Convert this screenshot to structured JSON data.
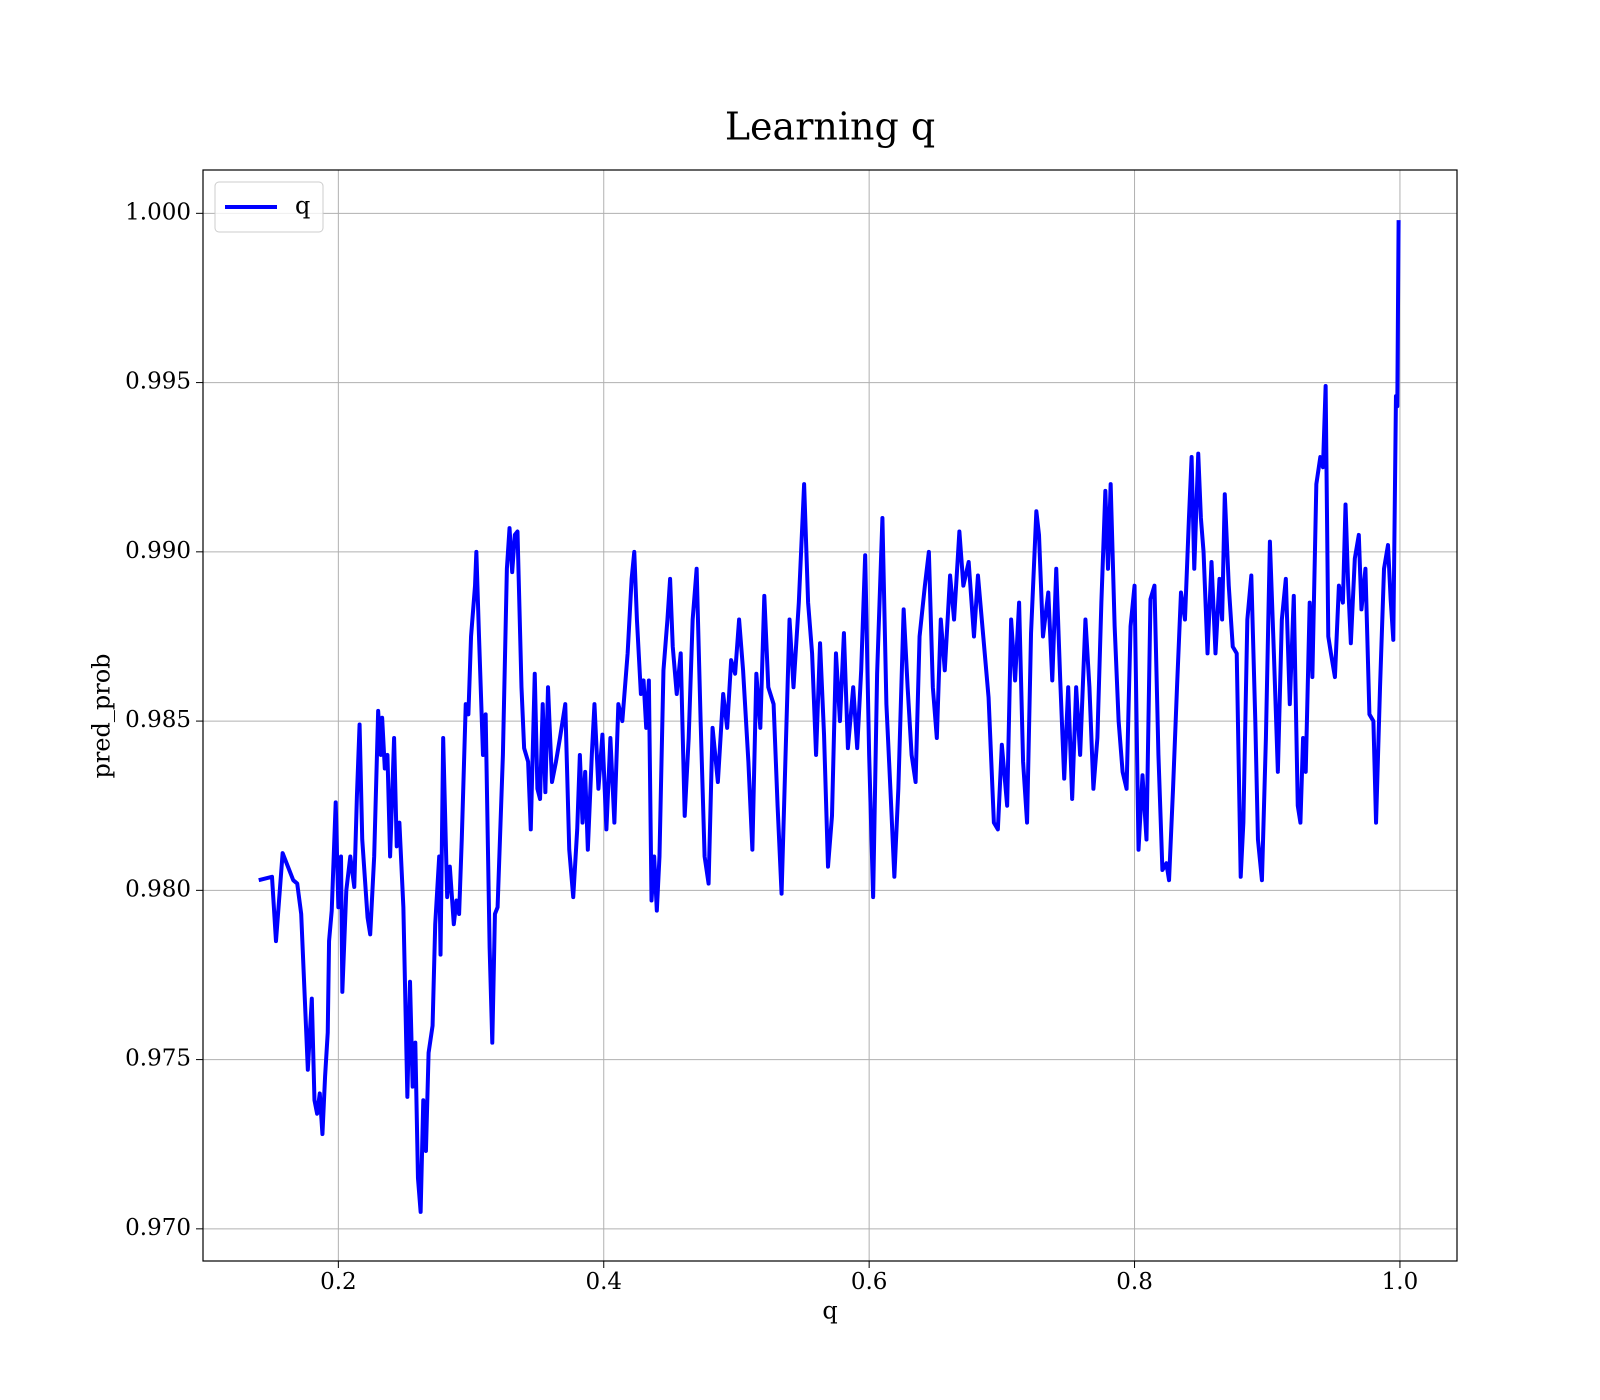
{
  "chart_data": {
    "type": "line",
    "title": "Learning q",
    "xlabel": "q",
    "ylabel": "pred_prob",
    "x": [
      0.14,
      0.15,
      0.153,
      0.158,
      0.162,
      0.166,
      0.169,
      0.172,
      0.177,
      0.18,
      0.182,
      0.184,
      0.186,
      0.188,
      0.19,
      0.192,
      0.193,
      0.195,
      0.198,
      0.2,
      0.202,
      0.203,
      0.206,
      0.209,
      0.212,
      0.214,
      0.216,
      0.218,
      0.222,
      0.224,
      0.227,
      0.23,
      0.232,
      0.233,
      0.235,
      0.237,
      0.239,
      0.242,
      0.244,
      0.246,
      0.249,
      0.252,
      0.254,
      0.256,
      0.258,
      0.26,
      0.262,
      0.264,
      0.266,
      0.268,
      0.271,
      0.273,
      0.276,
      0.277,
      0.279,
      0.282,
      0.284,
      0.287,
      0.289,
      0.291,
      0.293,
      0.296,
      0.298,
      0.3,
      0.303,
      0.304,
      0.306,
      0.309,
      0.311,
      0.314,
      0.316,
      0.318,
      0.32,
      0.324,
      0.327,
      0.329,
      0.331,
      0.333,
      0.335,
      0.338,
      0.34,
      0.343,
      0.345,
      0.348,
      0.35,
      0.352,
      0.354,
      0.356,
      0.358,
      0.361,
      0.364,
      0.367,
      0.371,
      0.374,
      0.377,
      0.38,
      0.382,
      0.384,
      0.386,
      0.388,
      0.391,
      0.393,
      0.396,
      0.399,
      0.402,
      0.405,
      0.408,
      0.411,
      0.414,
      0.418,
      0.421,
      0.423,
      0.425,
      0.428,
      0.43,
      0.432,
      0.434,
      0.436,
      0.438,
      0.44,
      0.442,
      0.445,
      0.448,
      0.45,
      0.452,
      0.455,
      0.458,
      0.461,
      0.464,
      0.467,
      0.47,
      0.473,
      0.476,
      0.479,
      0.482,
      0.486,
      0.49,
      0.493,
      0.496,
      0.499,
      0.502,
      0.505,
      0.509,
      0.512,
      0.515,
      0.518,
      0.521,
      0.524,
      0.528,
      0.531,
      0.534,
      0.537,
      0.54,
      0.543,
      0.547,
      0.551,
      0.554,
      0.557,
      0.56,
      0.563,
      0.566,
      0.569,
      0.572,
      0.575,
      0.578,
      0.581,
      0.584,
      0.588,
      0.591,
      0.594,
      0.597,
      0.6,
      0.603,
      0.606,
      0.61,
      0.613,
      0.616,
      0.619,
      0.622,
      0.626,
      0.629,
      0.632,
      0.635,
      0.638,
      0.642,
      0.645,
      0.648,
      0.651,
      0.654,
      0.657,
      0.661,
      0.664,
      0.668,
      0.671,
      0.675,
      0.679,
      0.682,
      0.686,
      0.69,
      0.694,
      0.697,
      0.7,
      0.704,
      0.707,
      0.71,
      0.713,
      0.716,
      0.719,
      0.722,
      0.726,
      0.728,
      0.731,
      0.735,
      0.738,
      0.741,
      0.744,
      0.747,
      0.75,
      0.753,
      0.756,
      0.759,
      0.763,
      0.766,
      0.769,
      0.772,
      0.775,
      0.778,
      0.78,
      0.782,
      0.785,
      0.788,
      0.791,
      0.794,
      0.797,
      0.8,
      0.803,
      0.806,
      0.809,
      0.812,
      0.815,
      0.818,
      0.821,
      0.824,
      0.826,
      0.829,
      0.832,
      0.835,
      0.838,
      0.841,
      0.843,
      0.845,
      0.848,
      0.85,
      0.852,
      0.855,
      0.858,
      0.861,
      0.864,
      0.866,
      0.868,
      0.871,
      0.874,
      0.877,
      0.88,
      0.882,
      0.885,
      0.888,
      0.891,
      0.893,
      0.896,
      0.899,
      0.902,
      0.905,
      0.908,
      0.911,
      0.914,
      0.917,
      0.92,
      0.923,
      0.925,
      0.927,
      0.929,
      0.932,
      0.934,
      0.937,
      0.94,
      0.942,
      0.944,
      0.946,
      0.948,
      0.951,
      0.954,
      0.957,
      0.959,
      0.961,
      0.963,
      0.966,
      0.969,
      0.971,
      0.974,
      0.977,
      0.98,
      0.982,
      0.985,
      0.988,
      0.991,
      0.993,
      0.995,
      0.997,
      0.998,
      0.999
    ],
    "series": [
      {
        "name": "q",
        "color": "#0000ff",
        "values": [
          0.9803,
          0.9804,
          0.9785,
          0.9811,
          0.9807,
          0.9803,
          0.9802,
          0.9793,
          0.9747,
          0.9768,
          0.9738,
          0.9734,
          0.974,
          0.9728,
          0.9745,
          0.9758,
          0.9785,
          0.9794,
          0.9826,
          0.9795,
          0.981,
          0.977,
          0.98,
          0.981,
          0.9801,
          0.9828,
          0.9849,
          0.9815,
          0.9792,
          0.9787,
          0.981,
          0.9853,
          0.984,
          0.9851,
          0.9836,
          0.984,
          0.981,
          0.9845,
          0.9813,
          0.982,
          0.9795,
          0.9739,
          0.9773,
          0.9742,
          0.9755,
          0.9715,
          0.9705,
          0.9738,
          0.9723,
          0.9752,
          0.976,
          0.979,
          0.981,
          0.9781,
          0.9845,
          0.9798,
          0.9807,
          0.979,
          0.9797,
          0.9793,
          0.9815,
          0.9855,
          0.9852,
          0.9875,
          0.989,
          0.99,
          0.9875,
          0.984,
          0.9852,
          0.9783,
          0.9755,
          0.9793,
          0.9795,
          0.984,
          0.9895,
          0.9907,
          0.9894,
          0.9905,
          0.9906,
          0.986,
          0.9842,
          0.9838,
          0.9818,
          0.9864,
          0.983,
          0.9827,
          0.9855,
          0.9829,
          0.986,
          0.9832,
          0.9838,
          0.9845,
          0.9855,
          0.9812,
          0.9798,
          0.9818,
          0.984,
          0.982,
          0.9835,
          0.9812,
          0.984,
          0.9855,
          0.983,
          0.9846,
          0.9818,
          0.9845,
          0.982,
          0.9855,
          0.985,
          0.987,
          0.9892,
          0.99,
          0.988,
          0.9858,
          0.9862,
          0.9848,
          0.9862,
          0.9797,
          0.981,
          0.9794,
          0.981,
          0.9865,
          0.988,
          0.9892,
          0.9872,
          0.9858,
          0.987,
          0.9822,
          0.9845,
          0.988,
          0.9895,
          0.985,
          0.981,
          0.9802,
          0.9848,
          0.9832,
          0.9858,
          0.9848,
          0.9868,
          0.9864,
          0.988,
          0.9865,
          0.9838,
          0.9812,
          0.9864,
          0.9848,
          0.9887,
          0.986,
          0.9855,
          0.9825,
          0.9799,
          0.984,
          0.988,
          0.986,
          0.9885,
          0.992,
          0.9885,
          0.987,
          0.984,
          0.9873,
          0.9846,
          0.9807,
          0.9822,
          0.987,
          0.985,
          0.9876,
          0.9842,
          0.986,
          0.9842,
          0.9865,
          0.9899,
          0.984,
          0.9798,
          0.9864,
          0.991,
          0.9855,
          0.983,
          0.9804,
          0.983,
          0.9883,
          0.986,
          0.984,
          0.9832,
          0.9875,
          0.989,
          0.99,
          0.986,
          0.9845,
          0.988,
          0.9865,
          0.9893,
          0.988,
          0.9906,
          0.989,
          0.9897,
          0.9875,
          0.9893,
          0.9875,
          0.9857,
          0.982,
          0.9818,
          0.9843,
          0.9825,
          0.988,
          0.9862,
          0.9885,
          0.9838,
          0.982,
          0.9876,
          0.9912,
          0.9905,
          0.9875,
          0.9888,
          0.9862,
          0.9895,
          0.9862,
          0.9833,
          0.986,
          0.9827,
          0.986,
          0.984,
          0.988,
          0.986,
          0.983,
          0.9845,
          0.9885,
          0.9918,
          0.9895,
          0.992,
          0.9878,
          0.985,
          0.9835,
          0.983,
          0.9878,
          0.989,
          0.9812,
          0.9834,
          0.9815,
          0.9886,
          0.989,
          0.984,
          0.9806,
          0.9808,
          0.9803,
          0.983,
          0.986,
          0.9888,
          0.988,
          0.991,
          0.9928,
          0.9895,
          0.9929,
          0.991,
          0.99,
          0.987,
          0.9897,
          0.987,
          0.9892,
          0.988,
          0.9917,
          0.989,
          0.9872,
          0.987,
          0.9804,
          0.982,
          0.988,
          0.9893,
          0.985,
          0.9815,
          0.9803,
          0.9845,
          0.9903,
          0.987,
          0.9835,
          0.988,
          0.9892,
          0.9855,
          0.9887,
          0.9825,
          0.982,
          0.9845,
          0.9835,
          0.9885,
          0.9863,
          0.992,
          0.9928,
          0.9925,
          0.9949,
          0.9875,
          0.987,
          0.9863,
          0.989,
          0.9885,
          0.9914,
          0.989,
          0.9873,
          0.9898,
          0.9905,
          0.9883,
          0.9895,
          0.9852,
          0.985,
          0.982,
          0.986,
          0.9895,
          0.9902,
          0.9886,
          0.9874,
          0.9946,
          0.9943,
          0.9998
        ]
      }
    ],
    "xlim": [
      0.098,
      1.043
    ],
    "xticks": [
      0.2,
      0.4,
      0.6,
      0.8,
      {
        "value": 1,
        "label": "1.0"
      }
    ],
    "ylim": [
      0.96905,
      1.00128
    ],
    "yticks": [
      {
        "value": 0.97,
        "label": "0.970"
      },
      0.975,
      {
        "value": 0.98,
        "label": "0.980"
      },
      0.985,
      {
        "value": 0.99,
        "label": "0.990"
      },
      0.995,
      {
        "value": 1,
        "label": "1.000"
      }
    ],
    "grid": true,
    "legend": "upper left"
  }
}
